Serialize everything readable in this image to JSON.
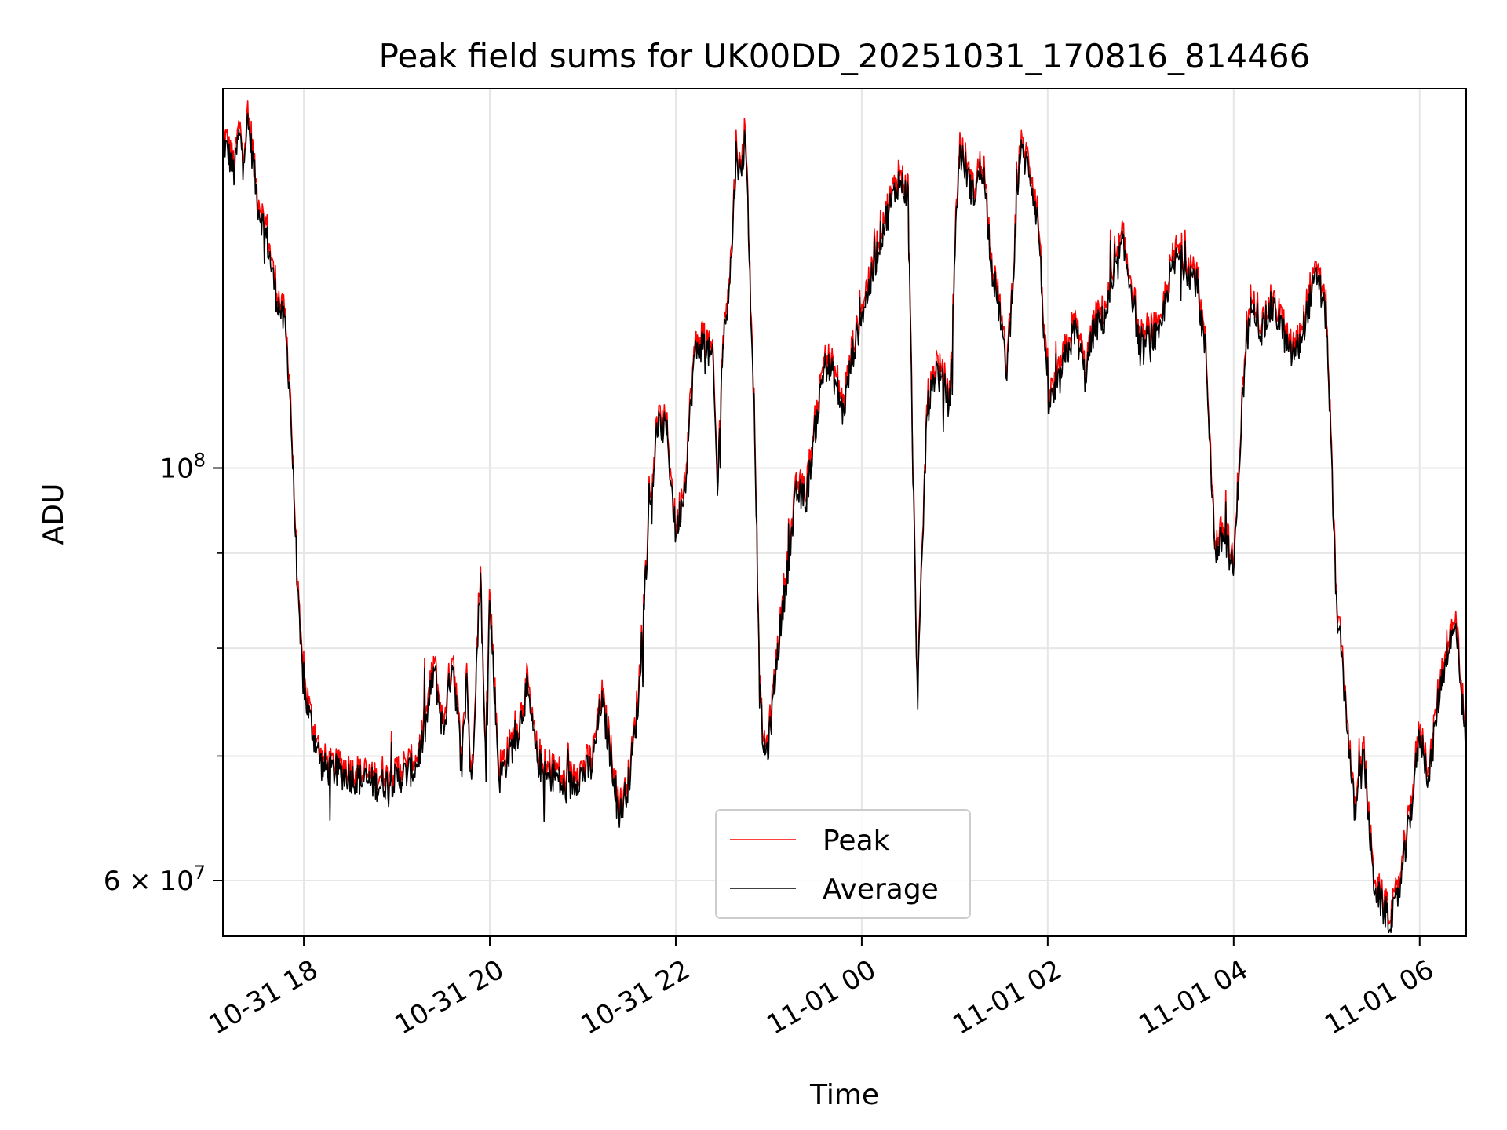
{
  "chart_data": {
    "type": "line",
    "title": "Peak field sums for UK00DD_20251031_170816_814466",
    "xlabel": "Time",
    "ylabel": "ADU",
    "yscale": "log",
    "ylim": [
      56000000,
      160000000
    ],
    "xlim_hours": [
      -0.87,
      12.5
    ],
    "x_unit": "hours since 2025-10-31 18:00",
    "grid": true,
    "legend_location": "lower center",
    "xticks": [
      {
        "value": 0,
        "label": "10-31 18"
      },
      {
        "value": 2,
        "label": "10-31 20"
      },
      {
        "value": 4,
        "label": "10-31 22"
      },
      {
        "value": 6,
        "label": "11-01 00"
      },
      {
        "value": 8,
        "label": "11-01 02"
      },
      {
        "value": 10,
        "label": "11-01 04"
      },
      {
        "value": 12,
        "label": "11-01 06"
      }
    ],
    "yticks_major": [
      {
        "value": 60000000,
        "base": "6 × 10",
        "exp": "7"
      },
      {
        "value": 100000000,
        "base": "10",
        "exp": "8"
      }
    ],
    "yticks_minor": [
      70000000,
      80000000,
      90000000
    ],
    "series": [
      {
        "name": "Peak",
        "color": "#ff0000"
      },
      {
        "name": "Average",
        "color": "#000000"
      }
    ],
    "average_keypoints": [
      [
        -0.87,
        150000000
      ],
      [
        -0.8,
        147000000
      ],
      [
        -0.75,
        144000000
      ],
      [
        -0.7,
        151000000
      ],
      [
        -0.65,
        148000000
      ],
      [
        -0.6,
        153000000
      ],
      [
        -0.55,
        147000000
      ],
      [
        -0.5,
        139000000
      ],
      [
        -0.4,
        133000000
      ],
      [
        -0.3,
        124000000
      ],
      [
        -0.2,
        119000000
      ],
      [
        -0.15,
        110000000
      ],
      [
        -0.1,
        95000000
      ],
      [
        -0.05,
        82000000
      ],
      [
        0.0,
        76000000
      ],
      [
        0.1,
        72000000
      ],
      [
        0.2,
        69000000
      ],
      [
        0.4,
        68500000
      ],
      [
        0.6,
        68000000
      ],
      [
        0.8,
        67500000
      ],
      [
        1.0,
        68000000
      ],
      [
        1.2,
        69000000
      ],
      [
        1.3,
        72000000
      ],
      [
        1.4,
        78000000
      ],
      [
        1.5,
        72000000
      ],
      [
        1.6,
        79000000
      ],
      [
        1.7,
        69000000
      ],
      [
        1.75,
        78000000
      ],
      [
        1.8,
        67000000
      ],
      [
        1.9,
        88000000
      ],
      [
        1.95,
        70000000
      ],
      [
        2.0,
        85000000
      ],
      [
        2.1,
        68000000
      ],
      [
        2.2,
        70000000
      ],
      [
        2.3,
        72000000
      ],
      [
        2.4,
        76000000
      ],
      [
        2.5,
        70000000
      ],
      [
        2.6,
        68000000
      ],
      [
        2.7,
        68500000
      ],
      [
        2.8,
        67000000
      ],
      [
        3.0,
        68500000
      ],
      [
        3.1,
        69000000
      ],
      [
        3.2,
        75000000
      ],
      [
        3.3,
        70000000
      ],
      [
        3.4,
        65000000
      ],
      [
        3.5,
        68000000
      ],
      [
        3.6,
        75000000
      ],
      [
        3.7,
        92000000
      ],
      [
        3.8,
        105000000
      ],
      [
        3.9,
        105000000
      ],
      [
        4.0,
        92000000
      ],
      [
        4.1,
        98000000
      ],
      [
        4.2,
        115000000
      ],
      [
        4.3,
        117000000
      ],
      [
        4.4,
        114000000
      ],
      [
        4.45,
        97000000
      ],
      [
        4.5,
        115000000
      ],
      [
        4.6,
        130000000
      ],
      [
        4.65,
        148000000
      ],
      [
        4.7,
        143000000
      ],
      [
        4.75,
        152000000
      ],
      [
        4.8,
        125000000
      ],
      [
        4.85,
        105000000
      ],
      [
        4.9,
        76000000
      ],
      [
        4.95,
        70000000
      ],
      [
        5.0,
        71000000
      ],
      [
        5.1,
        80000000
      ],
      [
        5.2,
        88000000
      ],
      [
        5.3,
        97000000
      ],
      [
        5.4,
        96000000
      ],
      [
        5.5,
        105000000
      ],
      [
        5.6,
        114000000
      ],
      [
        5.7,
        112000000
      ],
      [
        5.8,
        107000000
      ],
      [
        5.9,
        115000000
      ],
      [
        6.0,
        121000000
      ],
      [
        6.1,
        126000000
      ],
      [
        6.2,
        133000000
      ],
      [
        6.3,
        138000000
      ],
      [
        6.4,
        143000000
      ],
      [
        6.5,
        140000000
      ],
      [
        6.55,
        100000000
      ],
      [
        6.6,
        75000000
      ],
      [
        6.7,
        107000000
      ],
      [
        6.8,
        113000000
      ],
      [
        6.9,
        110000000
      ],
      [
        6.95,
        108000000
      ],
      [
        7.0,
        130000000
      ],
      [
        7.05,
        148000000
      ],
      [
        7.1,
        146000000
      ],
      [
        7.2,
        140000000
      ],
      [
        7.3,
        146000000
      ],
      [
        7.4,
        128000000
      ],
      [
        7.5,
        120000000
      ],
      [
        7.55,
        112000000
      ],
      [
        7.6,
        120000000
      ],
      [
        7.7,
        148000000
      ],
      [
        7.8,
        145000000
      ],
      [
        7.9,
        135000000
      ],
      [
        8.0,
        108000000
      ],
      [
        8.1,
        110000000
      ],
      [
        8.2,
        115000000
      ],
      [
        8.3,
        119000000
      ],
      [
        8.4,
        112000000
      ],
      [
        8.5,
        119000000
      ],
      [
        8.6,
        120000000
      ],
      [
        8.7,
        125000000
      ],
      [
        8.8,
        132000000
      ],
      [
        8.9,
        125000000
      ],
      [
        9.0,
        115000000
      ],
      [
        9.1,
        118000000
      ],
      [
        9.2,
        117000000
      ],
      [
        9.3,
        126000000
      ],
      [
        9.4,
        130000000
      ],
      [
        9.5,
        128000000
      ],
      [
        9.6,
        126000000
      ],
      [
        9.7,
        115000000
      ],
      [
        9.8,
        90000000
      ],
      [
        9.9,
        92000000
      ],
      [
        10.0,
        88000000
      ],
      [
        10.1,
        110000000
      ],
      [
        10.2,
        124000000
      ],
      [
        10.3,
        118000000
      ],
      [
        10.4,
        122000000
      ],
      [
        10.5,
        120000000
      ],
      [
        10.6,
        115000000
      ],
      [
        10.7,
        116000000
      ],
      [
        10.8,
        122000000
      ],
      [
        10.9,
        127000000
      ],
      [
        11.0,
        120000000
      ],
      [
        11.1,
        85000000
      ],
      [
        11.2,
        75000000
      ],
      [
        11.3,
        65000000
      ],
      [
        11.4,
        70000000
      ],
      [
        11.5,
        60000000
      ],
      [
        11.6,
        58000000
      ],
      [
        11.7,
        57000000
      ],
      [
        11.8,
        60000000
      ],
      [
        11.9,
        65000000
      ],
      [
        12.0,
        72000000
      ],
      [
        12.1,
        68000000
      ],
      [
        12.2,
        75000000
      ],
      [
        12.3,
        80000000
      ],
      [
        12.4,
        82000000
      ],
      [
        12.5,
        70000000
      ]
    ]
  }
}
